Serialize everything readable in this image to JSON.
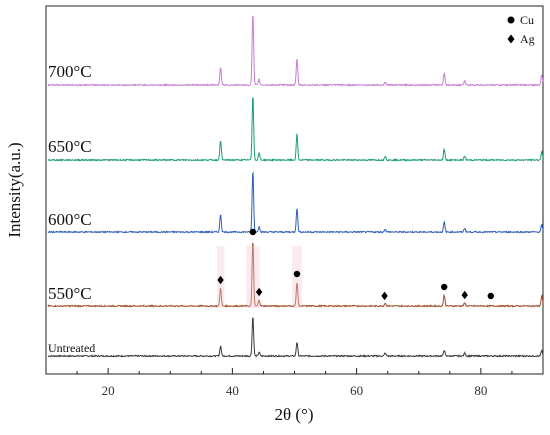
{
  "chart_data": {
    "type": "line",
    "xlabel": "2θ (°)",
    "ylabel": "Intensity(a.u.)",
    "xlim": [
      10,
      90
    ],
    "x_ticks": [
      20,
      40,
      60,
      80
    ],
    "x_tick_labels": [
      "20",
      "40",
      "60",
      "80"
    ],
    "grid": false,
    "legend": {
      "placement": "top-right",
      "entries": [
        {
          "marker": "circle",
          "label": "Cu"
        },
        {
          "marker": "diamond",
          "label": "Ag"
        }
      ]
    },
    "peaks": [
      {
        "x": 38.1,
        "marker": "diamond"
      },
      {
        "x": 43.3,
        "marker": "circle"
      },
      {
        "x": 44.3,
        "marker": "diamond"
      },
      {
        "x": 50.4,
        "marker": "circle"
      },
      {
        "x": 64.5,
        "marker": "diamond"
      },
      {
        "x": 74.1,
        "marker": "circle"
      },
      {
        "x": 77.4,
        "marker": "diamond"
      },
      {
        "x": 81.6,
        "marker": "circle"
      }
    ],
    "series": [
      {
        "name": "Untreated",
        "color": "#3a3a3a",
        "label_size": "small",
        "peaks": [
          {
            "x": 38.1,
            "h": 10
          },
          {
            "x": 43.3,
            "h": 40
          },
          {
            "x": 44.3,
            "h": 4
          },
          {
            "x": 50.4,
            "h": 14
          },
          {
            "x": 64.6,
            "h": 3
          },
          {
            "x": 74.1,
            "h": 6
          },
          {
            "x": 77.4,
            "h": 3
          },
          {
            "x": 89.8,
            "h": 5
          }
        ]
      },
      {
        "name": "550°C",
        "color": "#a0522d",
        "label_size": "large",
        "peaks": [
          {
            "x": 38.1,
            "h": 18
          },
          {
            "x": 43.3,
            "h": 66
          },
          {
            "x": 44.3,
            "h": 6
          },
          {
            "x": 50.4,
            "h": 24
          },
          {
            "x": 64.6,
            "h": 3
          },
          {
            "x": 74.1,
            "h": 11
          },
          {
            "x": 77.4,
            "h": 3
          },
          {
            "x": 89.8,
            "h": 10
          }
        ]
      },
      {
        "name": "600°C",
        "color": "#2f5fbf",
        "label_size": "large",
        "peaks": [
          {
            "x": 38.1,
            "h": 18
          },
          {
            "x": 43.3,
            "h": 62
          },
          {
            "x": 44.3,
            "h": 6
          },
          {
            "x": 50.4,
            "h": 24
          },
          {
            "x": 64.6,
            "h": 3
          },
          {
            "x": 74.1,
            "h": 10
          },
          {
            "x": 77.4,
            "h": 4
          },
          {
            "x": 89.8,
            "h": 7
          }
        ]
      },
      {
        "name": "650°C",
        "color": "#1aa070",
        "label_size": "large",
        "peaks": [
          {
            "x": 38.1,
            "h": 20
          },
          {
            "x": 43.3,
            "h": 66
          },
          {
            "x": 44.3,
            "h": 7
          },
          {
            "x": 50.4,
            "h": 26
          },
          {
            "x": 64.6,
            "h": 4
          },
          {
            "x": 74.1,
            "h": 11
          },
          {
            "x": 77.4,
            "h": 4
          },
          {
            "x": 89.8,
            "h": 8
          }
        ]
      },
      {
        "name": "700°C",
        "color": "#c77fd4",
        "label_size": "large",
        "peaks": [
          {
            "x": 38.1,
            "h": 18
          },
          {
            "x": 43.3,
            "h": 72
          },
          {
            "x": 44.3,
            "h": 6
          },
          {
            "x": 50.4,
            "h": 26
          },
          {
            "x": 64.6,
            "h": 3
          },
          {
            "x": 74.1,
            "h": 12
          },
          {
            "x": 77.4,
            "h": 4
          },
          {
            "x": 89.8,
            "h": 10
          }
        ]
      }
    ]
  }
}
